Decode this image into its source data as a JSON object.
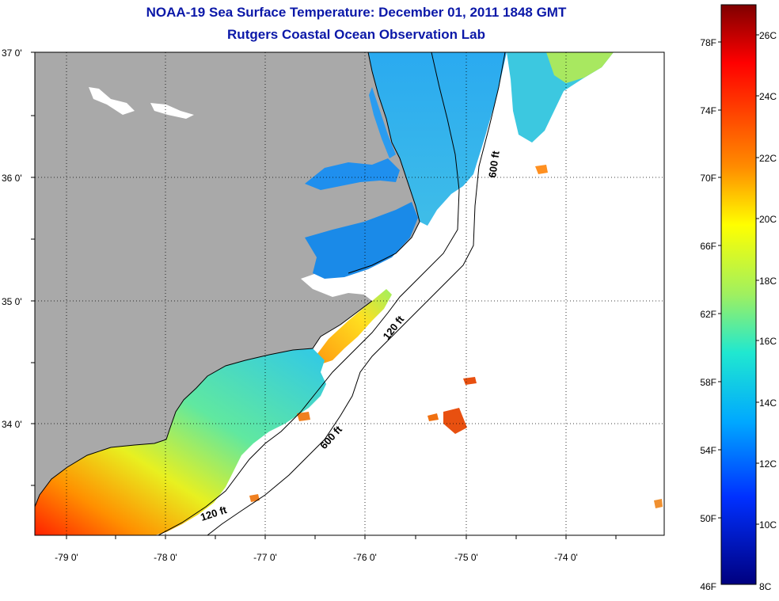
{
  "title": {
    "line1": "NOAA-19 Sea Surface Temperature:  December 01, 2011 1848 GMT",
    "line2": "Rutgers Coastal Ocean Observation Lab"
  },
  "map": {
    "lat_labels": [
      "37 0'",
      "36 0'",
      "35 0'",
      "34 0'"
    ],
    "lon_labels": [
      "-79 0'",
      "-78 0'",
      "-77 0'",
      "-76 0'",
      "-75 0'",
      "-74 0'"
    ],
    "contours": [
      "600 ft",
      "120 ft",
      "600 ft",
      "120 ft"
    ]
  },
  "colorbar": {
    "celsius_labels": [
      "26C",
      "24C",
      "22C",
      "20C",
      "18C",
      "16C",
      "14C",
      "12C",
      "10C",
      "8C"
    ],
    "fahrenheit_labels": [
      "78F",
      "74F",
      "70F",
      "66F",
      "62F",
      "58F",
      "54F",
      "50F",
      "46F"
    ]
  },
  "colors": {
    "title": "#0b18a8",
    "land": "#a9a9a9",
    "ocean": "#ffffff"
  }
}
